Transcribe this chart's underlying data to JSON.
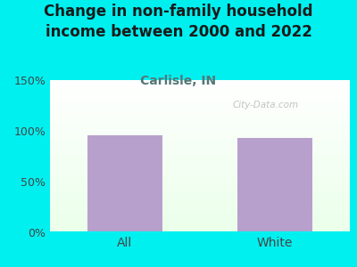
{
  "title": "Change in non-family household\nincome between 2000 and 2022",
  "subtitle": "Carlisle, IN",
  "categories": [
    "All",
    "White"
  ],
  "values": [
    96,
    93
  ],
  "bar_color": "#b8a0cc",
  "title_color": "#1a1a1a",
  "subtitle_color": "#557777",
  "background_outer": "#00f0f0",
  "ylim": [
    0,
    150
  ],
  "yticks": [
    0,
    50,
    100,
    150
  ],
  "ytick_labels": [
    "0%",
    "50%",
    "100%",
    "150%"
  ],
  "watermark": "City-Data.com",
  "title_fontsize": 12,
  "subtitle_fontsize": 10,
  "tick_fontsize": 9,
  "xtick_fontsize": 10
}
